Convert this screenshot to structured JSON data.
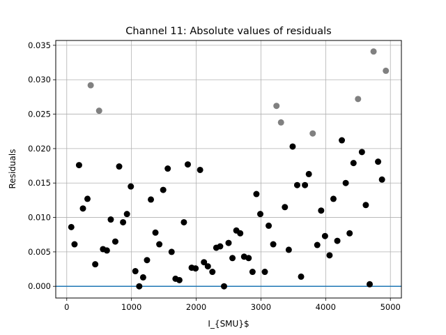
{
  "chart_data": {
    "type": "scatter",
    "title": "Channel 11: Absolute values of residuals",
    "xlabel": "I_{SMU}$",
    "ylabel": "Residuals",
    "xlim": [
      -170,
      5170
    ],
    "ylim": [
      -0.0017,
      0.0357
    ],
    "xticks": [
      0,
      1000,
      2000,
      3000,
      4000,
      5000
    ],
    "xtick_labels": [
      "0",
      "1000",
      "2000",
      "3000",
      "4000",
      "5000"
    ],
    "yticks": [
      0.0,
      0.005,
      0.01,
      0.015,
      0.02,
      0.025,
      0.03,
      0.035
    ],
    "ytick_labels": [
      "0.000",
      "0.005",
      "0.010",
      "0.015",
      "0.020",
      "0.025",
      "0.030",
      "0.035"
    ],
    "grid": true,
    "hline": {
      "y": 0,
      "color": "#1f77b4"
    },
    "colors": {
      "inlier": "#000000",
      "outlier": "#808080"
    },
    "series": [
      {
        "color": "#000000",
        "points": [
          [
            70,
            0.0086
          ],
          [
            120,
            0.0061
          ],
          [
            190,
            0.0176
          ],
          [
            250,
            0.0113
          ],
          [
            320,
            0.0127
          ],
          [
            440,
            0.0032
          ],
          [
            560,
            0.0054
          ],
          [
            620,
            0.0052
          ],
          [
            680,
            0.0097
          ],
          [
            750,
            0.0065
          ],
          [
            810,
            0.0174
          ],
          [
            870,
            0.0093
          ],
          [
            930,
            0.0105
          ],
          [
            990,
            0.0145
          ],
          [
            1060,
            0.0022
          ],
          [
            1120,
            0.0
          ],
          [
            1180,
            0.0013
          ],
          [
            1240,
            0.0038
          ],
          [
            1300,
            0.0126
          ],
          [
            1370,
            0.0078
          ],
          [
            1430,
            0.0061
          ],
          [
            1490,
            0.014
          ],
          [
            1560,
            0.0171
          ],
          [
            1620,
            0.005
          ],
          [
            1680,
            0.0011
          ],
          [
            1740,
            0.0009
          ],
          [
            1810,
            0.0093
          ],
          [
            1870,
            0.0177
          ],
          [
            1930,
            0.0027
          ],
          [
            1990,
            0.0026
          ],
          [
            2060,
            0.0169
          ],
          [
            2120,
            0.0035
          ],
          [
            2180,
            0.0029
          ],
          [
            2250,
            0.0021
          ],
          [
            2310,
            0.0056
          ],
          [
            2370,
            0.0058
          ],
          [
            2430,
            0.0
          ],
          [
            2500,
            0.0063
          ],
          [
            2560,
            0.0041
          ],
          [
            2620,
            0.0081
          ],
          [
            2680,
            0.0077
          ],
          [
            2740,
            0.0043
          ],
          [
            2810,
            0.0041
          ],
          [
            2870,
            0.0021
          ],
          [
            2930,
            0.0134
          ],
          [
            2990,
            0.0105
          ],
          [
            3060,
            0.0021
          ],
          [
            3120,
            0.0088
          ],
          [
            3190,
            0.0061
          ],
          [
            3370,
            0.0115
          ],
          [
            3430,
            0.0053
          ],
          [
            3490,
            0.0203
          ],
          [
            3560,
            0.0147
          ],
          [
            3620,
            0.0014
          ],
          [
            3680,
            0.0147
          ],
          [
            3740,
            0.0163
          ],
          [
            3870,
            0.006
          ],
          [
            3930,
            0.011
          ],
          [
            3990,
            0.0073
          ],
          [
            4060,
            0.0045
          ],
          [
            4120,
            0.0127
          ],
          [
            4180,
            0.0066
          ],
          [
            4250,
            0.0212
          ],
          [
            4310,
            0.015
          ],
          [
            4370,
            0.0077
          ],
          [
            4430,
            0.0179
          ],
          [
            4560,
            0.0195
          ],
          [
            4620,
            0.0118
          ],
          [
            4680,
            0.0003
          ],
          [
            4810,
            0.0181
          ],
          [
            4870,
            0.0155
          ]
        ]
      },
      {
        "color": "#808080",
        "points": [
          [
            370,
            0.0292
          ],
          [
            500,
            0.0255
          ],
          [
            3240,
            0.0262
          ],
          [
            3310,
            0.0238
          ],
          [
            3800,
            0.0222
          ],
          [
            4500,
            0.0272
          ],
          [
            4740,
            0.0341
          ],
          [
            4930,
            0.0313
          ]
        ]
      }
    ]
  }
}
